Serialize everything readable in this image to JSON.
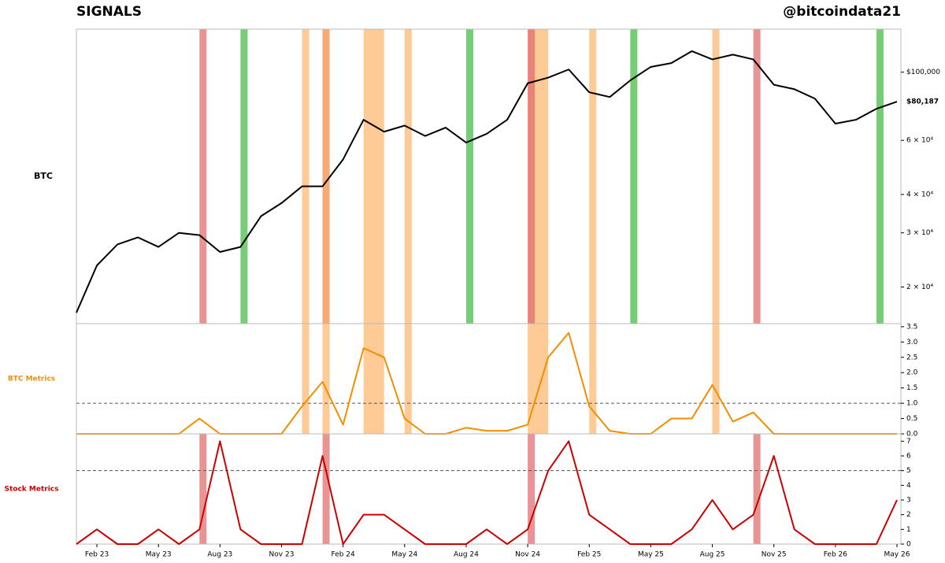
{
  "chart_data": {
    "title": "SIGNALS",
    "source": "@bitcoindata21",
    "xlim": [
      "2023-01",
      "2026-05"
    ],
    "xticks": [
      {
        "value": "2023-02",
        "label": "Feb 23"
      },
      {
        "value": "2023-05",
        "label": "May 23"
      },
      {
        "value": "2023-08",
        "label": "Aug 23"
      },
      {
        "value": "2023-11",
        "label": "Nov 23"
      },
      {
        "value": "2024-02",
        "label": "Feb 24"
      },
      {
        "value": "2024-05",
        "label": "May 24"
      },
      {
        "value": "2024-08",
        "label": "Aug 24"
      },
      {
        "value": "2024-11",
        "label": "Nov 24"
      },
      {
        "value": "2025-02",
        "label": "Feb 25"
      },
      {
        "value": "2025-05",
        "label": "May 25"
      },
      {
        "value": "2025-08",
        "label": "Aug 25"
      },
      {
        "value": "2025-11",
        "label": "Nov 25"
      },
      {
        "value": "2026-02",
        "label": "Feb 26"
      },
      {
        "value": "2026-05",
        "label": "May 26"
      }
    ],
    "band_colors": {
      "red": "#e06666",
      "green": "#3cb83c",
      "orange": "#fdb46a"
    },
    "bands": [
      {
        "kind": "red",
        "start": "2023-07",
        "end": "2023-07"
      },
      {
        "kind": "green",
        "start": "2023-09",
        "end": "2023-09"
      },
      {
        "kind": "orange",
        "start": "2023-12",
        "end": "2023-12"
      },
      {
        "kind": "red",
        "start": "2024-01",
        "end": "2024-01"
      },
      {
        "kind": "orange",
        "start": "2024-01",
        "end": "2024-01"
      },
      {
        "kind": "orange",
        "start": "2024-03",
        "end": "2024-04"
      },
      {
        "kind": "orange",
        "start": "2024-05",
        "end": "2024-05"
      },
      {
        "kind": "green",
        "start": "2024-08",
        "end": "2024-08"
      },
      {
        "kind": "orange",
        "start": "2024-11",
        "end": "2024-12"
      },
      {
        "kind": "red",
        "start": "2024-11",
        "end": "2024-11"
      },
      {
        "kind": "orange",
        "start": "2025-02",
        "end": "2025-02"
      },
      {
        "kind": "green",
        "start": "2025-04",
        "end": "2025-04"
      },
      {
        "kind": "orange",
        "start": "2025-08",
        "end": "2025-08"
      },
      {
        "kind": "red",
        "start": "2025-10",
        "end": "2025-10"
      },
      {
        "kind": "green",
        "start": "2026-04",
        "end": "2026-04"
      }
    ],
    "x": [
      "2023-01",
      "2023-02",
      "2023-03",
      "2023-04",
      "2023-05",
      "2023-06",
      "2023-07",
      "2023-08",
      "2023-09",
      "2023-10",
      "2023-11",
      "2023-12",
      "2024-01",
      "2024-02",
      "2024-03",
      "2024-04",
      "2024-05",
      "2024-06",
      "2024-07",
      "2024-08",
      "2024-09",
      "2024-10",
      "2024-11",
      "2024-12",
      "2025-01",
      "2025-02",
      "2025-03",
      "2025-04",
      "2025-05",
      "2025-06",
      "2025-07",
      "2025-08",
      "2025-09",
      "2025-10",
      "2025-11",
      "2025-12",
      "2026-01",
      "2026-02",
      "2026-03",
      "2026-04",
      "2026-05"
    ],
    "panels": [
      {
        "type": "line",
        "label": "BTC",
        "log_scale": true,
        "band_kinds": [
          "red",
          "green",
          "orange"
        ],
        "ylim": [
          15200,
          138000
        ],
        "yticks": [
          {
            "value": 100000,
            "label": "$100,000"
          },
          {
            "value": 60000,
            "label": "6 × 10⁴"
          },
          {
            "value": 40000,
            "label": "4 × 10⁴"
          },
          {
            "value": 30000,
            "label": "3 × 10⁴"
          },
          {
            "value": 20000,
            "label": "2 × 10⁴"
          }
        ],
        "price_label": "$80,187",
        "series": [
          {
            "name": "BTC",
            "color": "#000000",
            "values": [
              16500,
              23500,
              27500,
              29000,
              27000,
              30000,
              29500,
              26000,
              27000,
              34000,
              37500,
              42500,
              42500,
              52000,
              70000,
              64000,
              67000,
              62000,
              66000,
              59000,
              63000,
              70000,
              92000,
              96000,
              102000,
              86000,
              83000,
              94000,
              104000,
              107000,
              117000,
              110000,
              114000,
              110000,
              91000,
              88000,
              82000,
              68000,
              70000,
              76000,
              80187
            ]
          }
        ]
      },
      {
        "type": "line",
        "label": "BTC Metrics",
        "label_color": "#f28e00",
        "log_scale": false,
        "band_kinds": [
          "orange"
        ],
        "ylim": [
          0,
          3.6
        ],
        "threshold": 1,
        "yticks": [
          {
            "value": 0,
            "label": "0.0"
          },
          0.5,
          {
            "value": 1,
            "label": "1.0"
          },
          1.5,
          {
            "value": 2,
            "label": "2.0"
          },
          2.5,
          {
            "value": 3,
            "label": "3.0"
          },
          3.5
        ],
        "series": [
          {
            "name": "BTC Metrics",
            "color": "#f28e00",
            "values": [
              0,
              0,
              0,
              0,
              0,
              0,
              0.5,
              0,
              0,
              0,
              0,
              0.9,
              1.7,
              0.3,
              2.8,
              2.5,
              0.5,
              0,
              0,
              0.2,
              0.1,
              0.1,
              0.3,
              2.5,
              3.3,
              0.9,
              0.1,
              0,
              0,
              0.5,
              0.5,
              1.6,
              0.4,
              0.7,
              0,
              0,
              0,
              0,
              0,
              0,
              0
            ]
          }
        ]
      },
      {
        "type": "line",
        "label": "Stock Metrics",
        "label_color": "#cc0000",
        "log_scale": false,
        "band_kinds": [
          "red"
        ],
        "ylim": [
          0,
          7.5
        ],
        "threshold": 5,
        "yticks": [
          0,
          1,
          2,
          3,
          4,
          5,
          6,
          7
        ],
        "series": [
          {
            "name": "Stock Metrics",
            "color": "#cc0000",
            "values": [
              0,
              1,
              0,
              0,
              1,
              0,
              1,
              7,
              1,
              0,
              0,
              0,
              6,
              0,
              2,
              2,
              1,
              0,
              0,
              0,
              1,
              0,
              1,
              5,
              7,
              2,
              1,
              0,
              0,
              0,
              1,
              3,
              1,
              2,
              6,
              1,
              0,
              0,
              0,
              0,
              3
            ]
          }
        ]
      }
    ]
  }
}
